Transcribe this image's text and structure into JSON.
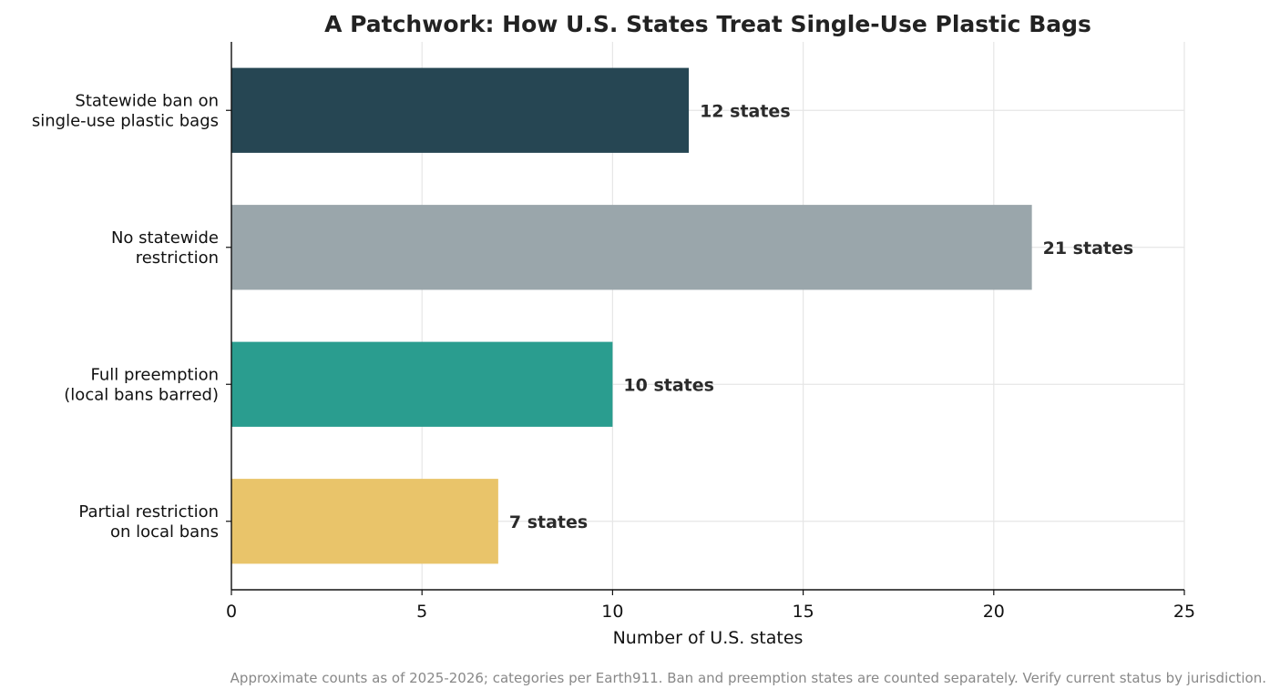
{
  "chart_data": {
    "type": "bar",
    "orientation": "horizontal",
    "title": "A Patchwork: How U.S. States Treat Single-Use Plastic Bags",
    "xlabel": "Number of U.S. states",
    "ylabel": "",
    "xlim": [
      0,
      25
    ],
    "x_ticks": [
      0,
      5,
      10,
      15,
      20,
      25
    ],
    "grid": true,
    "categories": [
      [
        "Statewide ban on",
        "single-use plastic bags"
      ],
      [
        "No statewide",
        "restriction"
      ],
      [
        "Full preemption",
        "(local bans barred)"
      ],
      [
        "Partial restriction",
        "on local bans"
      ]
    ],
    "values": [
      12,
      21,
      10,
      7
    ],
    "data_labels": [
      "12 states",
      "21 states",
      "10 states",
      "7 states"
    ],
    "colors": [
      "#264653",
      "#9aa6ab",
      "#2a9d8f",
      "#e9c46a"
    ]
  },
  "footnote": "Approximate counts as of 2025-2026; categories per Earth911. Ban and preemption states are counted separately. Verify current status by jurisdiction."
}
